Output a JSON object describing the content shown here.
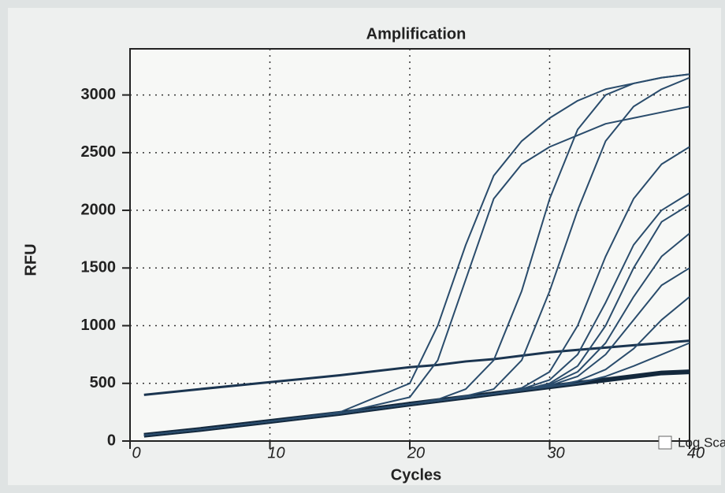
{
  "chart_data": {
    "type": "line",
    "title": "Amplification",
    "x_label": "Cycles",
    "y_label": "RFU",
    "x": [
      1,
      5,
      10,
      15,
      20,
      22,
      24,
      26,
      28,
      30,
      32,
      34,
      36,
      38,
      40
    ],
    "xlim": [
      0,
      40
    ],
    "xticks": [
      0,
      10,
      20,
      30,
      40
    ],
    "ylim": [
      0,
      3400
    ],
    "yticks": [
      0,
      500,
      1000,
      1500,
      2000,
      2500,
      3000
    ],
    "grid": true,
    "log_scale": false,
    "log_scale_label": "Log Sca",
    "series": [
      {
        "color": "#13283c",
        "line_width": 6,
        "values": [
          50,
          100,
          170,
          240,
          320,
          350,
          380,
          410,
          440,
          470,
          500,
          530,
          560,
          590,
          600
        ]
      },
      {
        "color": "#1b3550",
        "line_width": 3,
        "values": [
          400,
          450,
          510,
          570,
          640,
          660,
          690,
          710,
          740,
          770,
          790,
          810,
          830,
          850,
          870
        ]
      },
      {
        "color": "#2a4c6c",
        "line_width": 2,
        "values": [
          50,
          100,
          170,
          250,
          500,
          1000,
          1700,
          2300,
          2600,
          2800,
          2950,
          3050,
          3100,
          3150,
          3180
        ]
      },
      {
        "color": "#2a4c6c",
        "line_width": 2,
        "values": [
          50,
          100,
          170,
          240,
          380,
          700,
          1400,
          2100,
          2400,
          2550,
          2650,
          2750,
          2800,
          2850,
          2900
        ]
      },
      {
        "color": "#2a4c6c",
        "line_width": 2,
        "values": [
          50,
          100,
          170,
          240,
          320,
          360,
          450,
          700,
          1300,
          2100,
          2700,
          3000,
          3100,
          3150,
          3180
        ]
      },
      {
        "color": "#2a4c6c",
        "line_width": 2,
        "values": [
          50,
          100,
          170,
          240,
          320,
          350,
          390,
          450,
          700,
          1300,
          2000,
          2600,
          2900,
          3050,
          3150
        ]
      },
      {
        "color": "#2a4c6c",
        "line_width": 2,
        "values": [
          50,
          100,
          170,
          240,
          320,
          350,
          380,
          410,
          460,
          600,
          1000,
          1600,
          2100,
          2400,
          2550
        ]
      },
      {
        "color": "#2a4c6c",
        "line_width": 2,
        "values": [
          50,
          100,
          170,
          240,
          320,
          350,
          380,
          410,
          450,
          530,
          750,
          1200,
          1700,
          2000,
          2150
        ]
      },
      {
        "color": "#2a4c6c",
        "line_width": 2,
        "values": [
          50,
          100,
          170,
          240,
          320,
          350,
          380,
          410,
          440,
          500,
          650,
          1000,
          1500,
          1900,
          2050
        ]
      },
      {
        "color": "#2a4c6c",
        "line_width": 2,
        "values": [
          50,
          100,
          170,
          240,
          320,
          350,
          380,
          410,
          440,
          490,
          600,
          850,
          1250,
          1600,
          1800
        ]
      },
      {
        "color": "#2a4c6c",
        "line_width": 2,
        "values": [
          50,
          100,
          170,
          240,
          320,
          350,
          380,
          410,
          440,
          480,
          560,
          750,
          1050,
          1350,
          1500
        ]
      },
      {
        "color": "#2a4c6c",
        "line_width": 2,
        "values": [
          50,
          100,
          170,
          240,
          320,
          350,
          380,
          410,
          440,
          470,
          520,
          620,
          800,
          1050,
          1250
        ]
      },
      {
        "color": "#2a4c6c",
        "line_width": 2,
        "values": [
          50,
          100,
          170,
          240,
          320,
          350,
          380,
          410,
          440,
          470,
          500,
          560,
          650,
          750,
          850
        ]
      }
    ]
  }
}
